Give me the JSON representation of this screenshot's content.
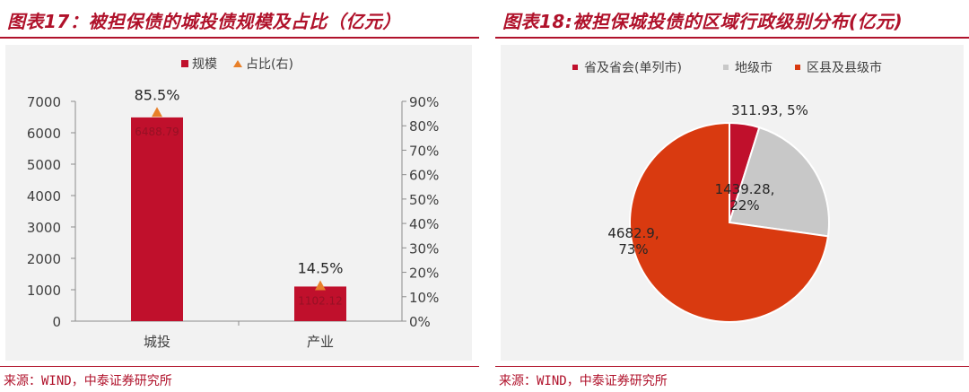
{
  "left": {
    "title": "图表17：被担保债的城投债规模及占比（亿元）",
    "source": "来源：WIND，中泰证券研究所"
  },
  "right": {
    "title": "图表18:被担保城投债的区域行政级别分布(亿元)",
    "source": "来源：WIND，中泰证券研究所"
  },
  "colors": {
    "bar": "#c0102c",
    "triangle": "#e8802a",
    "pie": [
      "#c0102c",
      "#c8c8c8",
      "#d93a10"
    ],
    "brand": "#b0122b"
  },
  "chart_data": [
    {
      "type": "bar",
      "categories": [
        "城投",
        "产业"
      ],
      "series": [
        {
          "name": "规模",
          "axis": "left",
          "values": [
            6488.79,
            1102.12
          ],
          "labels": [
            "6488.79",
            "1102.12"
          ]
        },
        {
          "name": "占比(右)",
          "axis": "right",
          "marker": "triangle",
          "values": [
            85.5,
            14.5
          ],
          "labels": [
            "85.5%",
            "14.5%"
          ]
        }
      ],
      "ylim": [
        0,
        7000
      ],
      "yticks": [
        "0",
        "1000",
        "2000",
        "3000",
        "4000",
        "5000",
        "6000",
        "7000"
      ],
      "y2lim": [
        0,
        90
      ],
      "y2ticks": [
        "0%",
        "10%",
        "20%",
        "30%",
        "40%",
        "50%",
        "60%",
        "70%",
        "80%",
        "90%"
      ],
      "legend": "top"
    },
    {
      "type": "pie",
      "categories": [
        "省及省会(单列市)",
        "地级市",
        "区县及县级市"
      ],
      "values": [
        311.93,
        1439.28,
        4682.9
      ],
      "percent": [
        5,
        22,
        73
      ],
      "labels": [
        "311.93, 5%",
        "1439.28, 22%",
        "4682.9, 73%"
      ],
      "legend": "top"
    }
  ]
}
